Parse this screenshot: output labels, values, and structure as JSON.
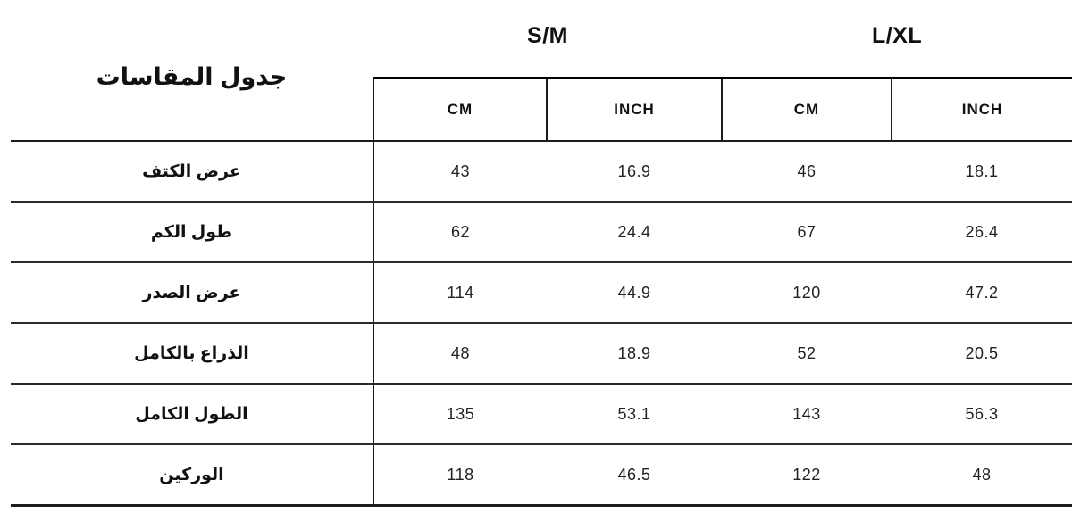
{
  "title": "جدول المقاسات",
  "size_groups": [
    {
      "label": "S/M"
    },
    {
      "label": "L/XL"
    }
  ],
  "unit_headers": [
    "CM",
    "INCH",
    "CM",
    "INCH"
  ],
  "rows": [
    {
      "label": "عرض الكتف",
      "values": [
        "43",
        "16.9",
        "46",
        "18.1"
      ]
    },
    {
      "label": "طول الكم",
      "values": [
        "62",
        "24.4",
        "67",
        "26.4"
      ]
    },
    {
      "label": "عرض الصدر",
      "values": [
        "114",
        "44.9",
        "120",
        "47.2"
      ]
    },
    {
      "label": "الذراع بالكامل",
      "values": [
        "48",
        "18.9",
        "52",
        "20.5"
      ]
    },
    {
      "label": "الطول الكامل",
      "values": [
        "135",
        "53.1",
        "143",
        "56.3"
      ]
    },
    {
      "label": "الوركين",
      "values": [
        "118",
        "46.5",
        "122",
        "48"
      ]
    }
  ],
  "chart_data": {
    "type": "table",
    "title": "جدول المقاسات",
    "column_groups": [
      "S/M",
      "L/XL"
    ],
    "columns": [
      "S/M CM",
      "S/M INCH",
      "L/XL CM",
      "L/XL INCH"
    ],
    "row_labels": [
      "عرض الكتف",
      "طول الكم",
      "عرض الصدر",
      "الذراع بالكامل",
      "الطول الكامل",
      "الوركين"
    ],
    "rows": [
      [
        43,
        16.9,
        46,
        18.1
      ],
      [
        62,
        24.4,
        67,
        26.4
      ],
      [
        114,
        44.9,
        120,
        47.2
      ],
      [
        48,
        18.9,
        52,
        20.5
      ],
      [
        135,
        53.1,
        143,
        56.3
      ],
      [
        118,
        46.5,
        122,
        48
      ]
    ],
    "colors": {
      "text": "#111111",
      "border": "#000000",
      "background": "#ffffff"
    }
  }
}
